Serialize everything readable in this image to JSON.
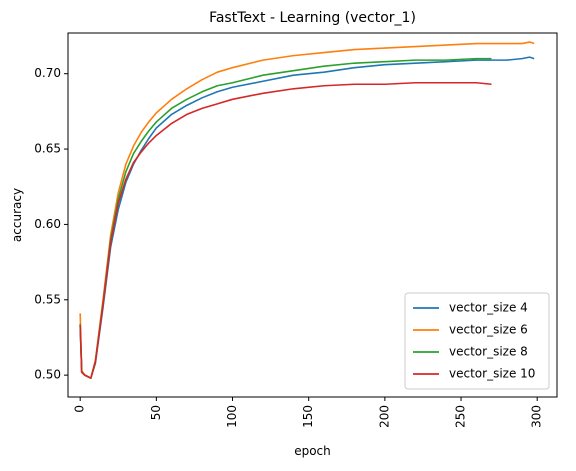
{
  "chart_data": {
    "type": "line",
    "title": "FastText - Learning (vector_1)",
    "xlabel": "epoch",
    "ylabel": "accuracy",
    "xlim": [
      -8,
      313
    ],
    "ylim": [
      0.4855,
      0.727
    ],
    "x_ticks": [
      0,
      50,
      100,
      150,
      200,
      250,
      300
    ],
    "x_tick_labels": [
      "0",
      "50",
      "100",
      "150",
      "200",
      "250",
      "300"
    ],
    "x_tick_rotation": "vertical",
    "y_ticks": [
      0.5,
      0.55,
      0.6,
      0.65,
      0.7
    ],
    "y_tick_labels": [
      "0.50",
      "0.55",
      "0.60",
      "0.65",
      "0.70"
    ],
    "grid": false,
    "legend_position": "lower-right",
    "series": [
      {
        "name": "vector_size 4",
        "color": "#1f77b4",
        "x": [
          0,
          1,
          3,
          5,
          7,
          10,
          15,
          20,
          25,
          30,
          35,
          40,
          45,
          50,
          60,
          70,
          80,
          90,
          100,
          120,
          140,
          160,
          180,
          200,
          220,
          240,
          260,
          280,
          290,
          295,
          298
        ],
        "y": [
          0.533,
          0.502,
          0.5,
          0.499,
          0.498,
          0.508,
          0.545,
          0.585,
          0.61,
          0.628,
          0.64,
          0.649,
          0.657,
          0.664,
          0.673,
          0.679,
          0.684,
          0.688,
          0.691,
          0.695,
          0.699,
          0.701,
          0.704,
          0.706,
          0.707,
          0.708,
          0.709,
          0.709,
          0.71,
          0.711,
          0.71
        ]
      },
      {
        "name": "vector_size 6",
        "color": "#ff7f0e",
        "x": [
          0,
          1,
          3,
          5,
          7,
          10,
          15,
          20,
          25,
          30,
          35,
          40,
          45,
          50,
          60,
          70,
          80,
          90,
          100,
          120,
          140,
          160,
          180,
          200,
          220,
          240,
          260,
          280,
          290,
          295,
          298
        ],
        "y": [
          0.541,
          0.503,
          0.5,
          0.499,
          0.498,
          0.51,
          0.55,
          0.593,
          0.621,
          0.64,
          0.652,
          0.661,
          0.668,
          0.674,
          0.683,
          0.69,
          0.696,
          0.701,
          0.704,
          0.709,
          0.712,
          0.714,
          0.716,
          0.717,
          0.718,
          0.719,
          0.72,
          0.72,
          0.72,
          0.721,
          0.72
        ]
      },
      {
        "name": "vector_size 8",
        "color": "#2ca02c",
        "x": [
          0,
          1,
          3,
          5,
          7,
          10,
          15,
          20,
          25,
          30,
          35,
          40,
          45,
          50,
          60,
          70,
          80,
          90,
          100,
          120,
          140,
          160,
          180,
          200,
          220,
          240,
          260,
          270
        ],
        "y": [
          0.534,
          0.502,
          0.5,
          0.499,
          0.498,
          0.509,
          0.548,
          0.59,
          0.617,
          0.635,
          0.647,
          0.655,
          0.662,
          0.668,
          0.677,
          0.683,
          0.688,
          0.692,
          0.694,
          0.699,
          0.702,
          0.705,
          0.707,
          0.708,
          0.709,
          0.709,
          0.71,
          0.71
        ]
      },
      {
        "name": "vector_size 10",
        "color": "#d62728",
        "x": [
          0,
          1,
          3,
          5,
          7,
          10,
          15,
          20,
          25,
          30,
          35,
          40,
          45,
          50,
          60,
          70,
          80,
          90,
          100,
          120,
          140,
          160,
          180,
          200,
          220,
          240,
          260,
          270
        ],
        "y": [
          0.533,
          0.502,
          0.5,
          0.499,
          0.498,
          0.509,
          0.547,
          0.588,
          0.614,
          0.63,
          0.641,
          0.648,
          0.654,
          0.659,
          0.667,
          0.673,
          0.677,
          0.68,
          0.683,
          0.687,
          0.69,
          0.692,
          0.693,
          0.693,
          0.694,
          0.694,
          0.694,
          0.693
        ]
      }
    ]
  }
}
